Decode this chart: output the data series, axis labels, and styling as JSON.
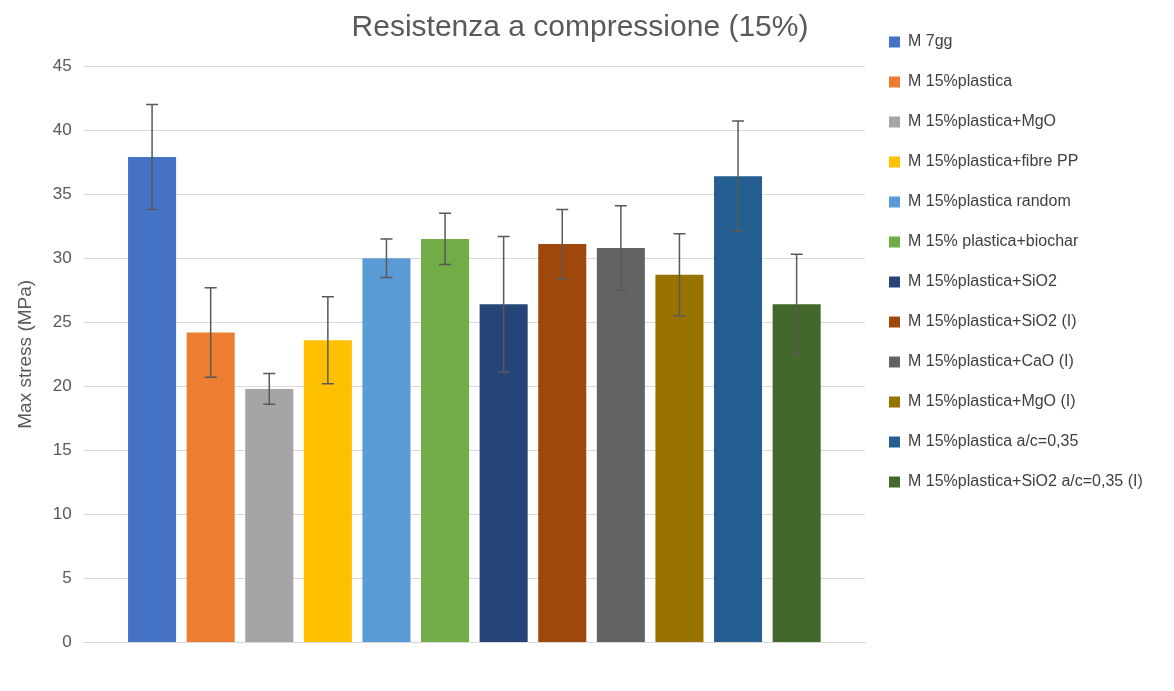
{
  "chart_data": {
    "type": "bar",
    "title": "Resistenza a compressione (15%)",
    "ylabel": "Max stress (MPa)",
    "categories": [
      null
    ],
    "series": [
      {
        "name": "M 7gg",
        "color": "#4472c4",
        "values": [
          37.9
        ],
        "errors": [
          4.1
        ]
      },
      {
        "name": "M 15%plastica",
        "color": "#ed7d31",
        "values": [
          24.2
        ],
        "errors": [
          3.5
        ]
      },
      {
        "name": "M 15%plastica+MgO",
        "color": "#a5a5a5",
        "values": [
          19.8
        ],
        "errors": [
          1.2
        ]
      },
      {
        "name": "M 15%plastica+fibre PP",
        "color": "#ffc000",
        "values": [
          23.6
        ],
        "errors": [
          3.4
        ]
      },
      {
        "name": "M 15%plastica random",
        "color": "#5b9bd5",
        "values": [
          30
        ],
        "errors": [
          1.5
        ]
      },
      {
        "name": "M 15% plastica+biochar",
        "color": "#70ad47",
        "values": [
          31.5
        ],
        "errors": [
          2
        ]
      },
      {
        "name": "M 15%plastica+SiO2",
        "color": "#264478",
        "values": [
          26.4
        ],
        "errors": [
          5.3
        ]
      },
      {
        "name": "M 15%plastica+SiO2 (I)",
        "color": "#9e480e",
        "values": [
          31.1
        ],
        "errors": [
          2.7
        ]
      },
      {
        "name": "M 15%plastica+CaO (I)",
        "color": "#636363",
        "values": [
          30.8
        ],
        "errors": [
          3.3
        ]
      },
      {
        "name": "M 15%plastica+MgO (I)",
        "color": "#997300",
        "values": [
          28.7
        ],
        "errors": [
          3.2
        ]
      },
      {
        "name": "M 15%plastica a/c=0,35",
        "color": "#255e91",
        "values": [
          36.4
        ],
        "errors": [
          4.3
        ]
      },
      {
        "name": "M 15%plastica+SiO2 a/c=0,35 (I)",
        "color": "#43682b",
        "values": [
          26.4
        ],
        "errors": [
          3.9
        ]
      }
    ],
    "ylim": [
      0,
      45
    ],
    "yticks": [
      0,
      5,
      10,
      15,
      20,
      25,
      30,
      35,
      40,
      45
    ],
    "grid": "y",
    "legend": "right"
  }
}
